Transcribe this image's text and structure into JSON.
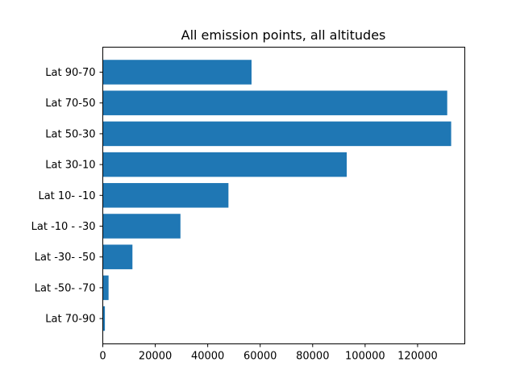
{
  "chart_data": {
    "type": "bar",
    "orientation": "horizontal",
    "title": "All emission points, all altitudes",
    "xlabel": "",
    "ylabel": "",
    "categories": [
      "Lat 90-70",
      "Lat 70-50",
      "Lat 50-30",
      "Lat 30-10",
      "Lat 10- -10",
      "Lat -10 - -30",
      "Lat -30- -50",
      "Lat -50- -70",
      "Lat 70-90"
    ],
    "values": [
      56700,
      131300,
      132800,
      93000,
      47900,
      29600,
      11300,
      2200,
      800
    ],
    "xlim": [
      0,
      138000
    ],
    "xticks": [
      0,
      20000,
      40000,
      60000,
      80000,
      100000,
      120000
    ],
    "bar_color": "#1f77b4",
    "grid": false,
    "legend": "none"
  }
}
